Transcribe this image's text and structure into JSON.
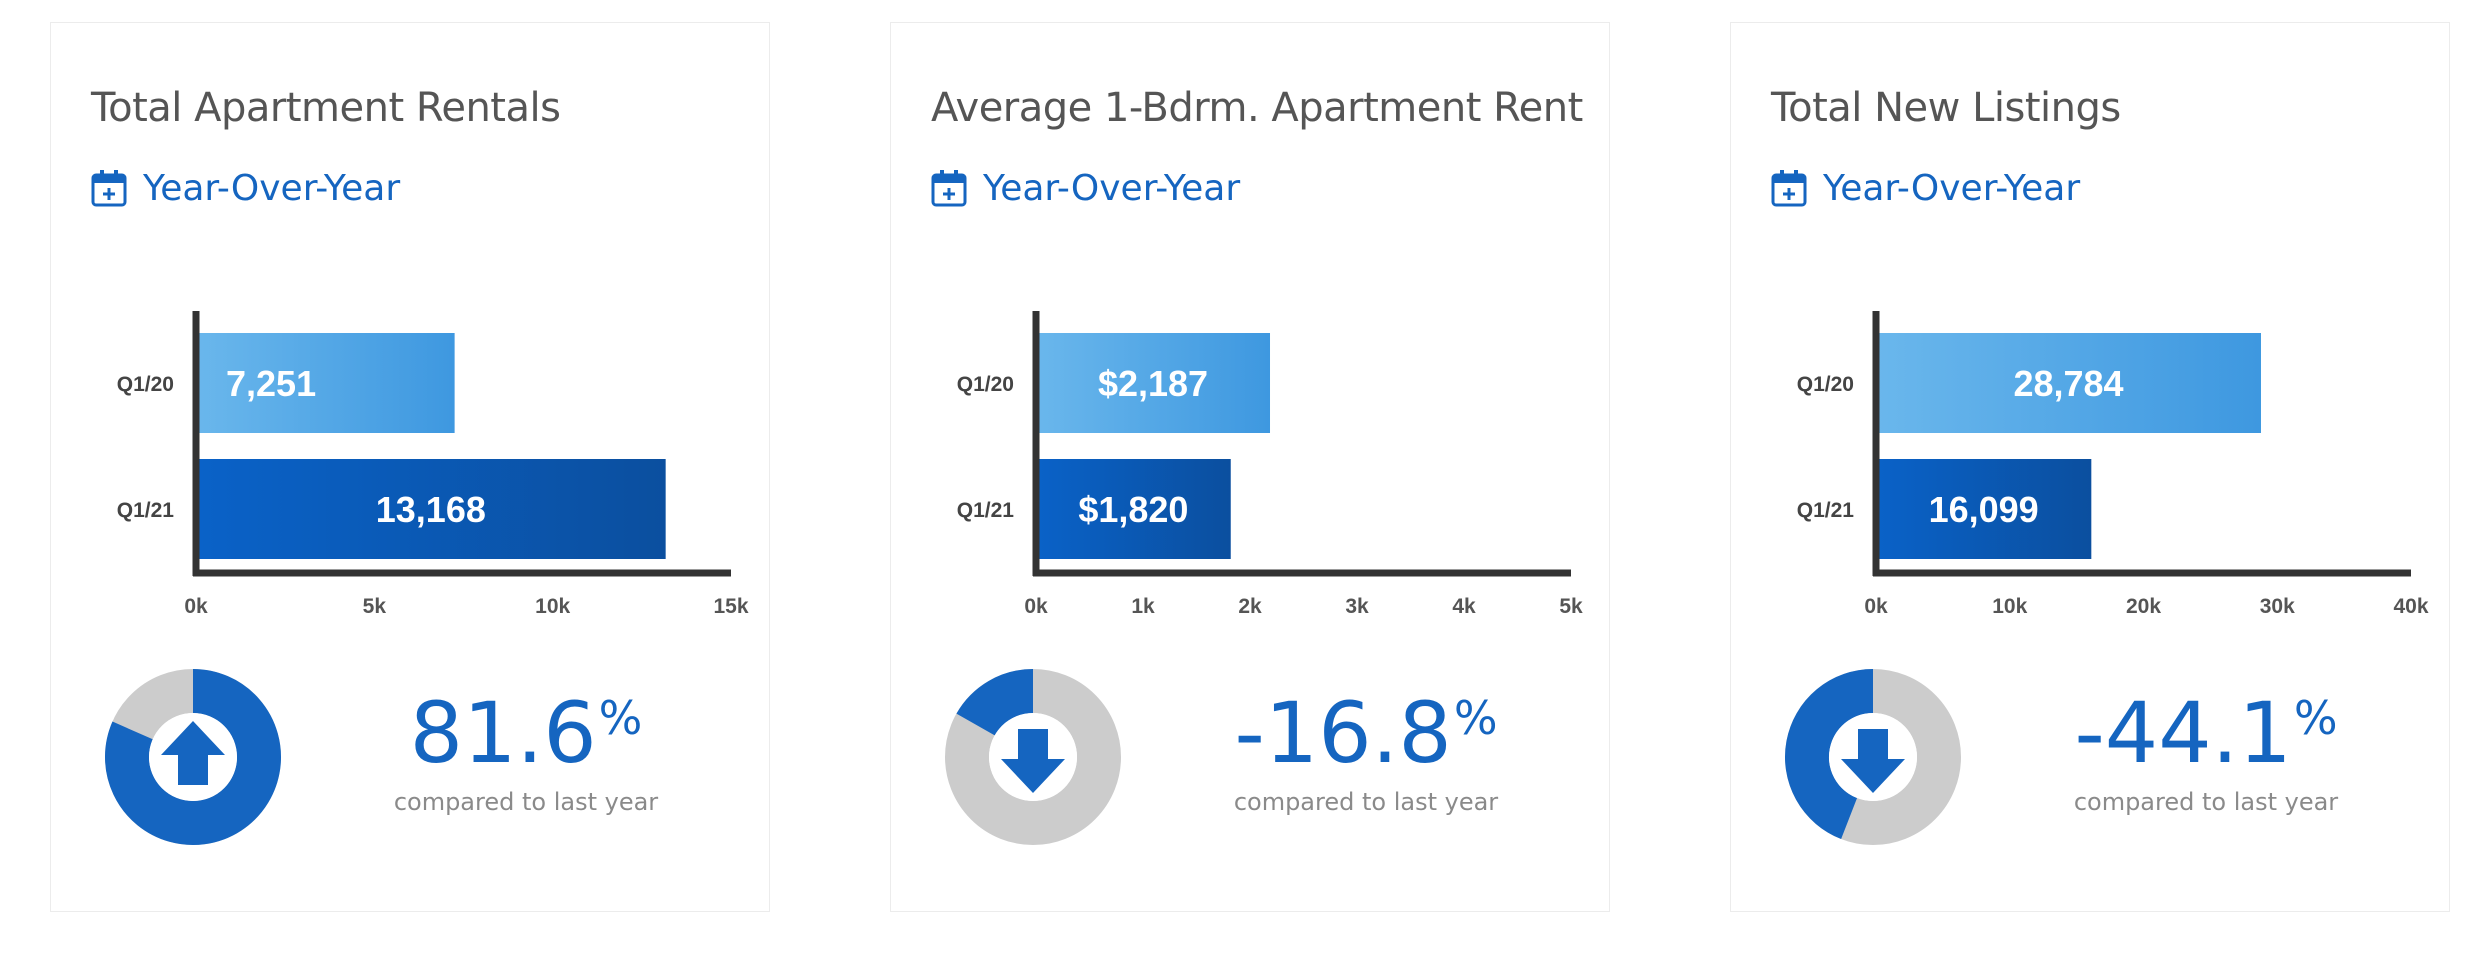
{
  "colors": {
    "accent": "#1565c0",
    "light_bar": "#5aa9e6",
    "dark_bar": "#0d5bb5",
    "donut_gray": "#cccccc",
    "axis": "#333333"
  },
  "period_label": "Year-Over-Year",
  "compare_label": "compared to last year",
  "percent_symbol": "%",
  "cards": [
    {
      "title": "Total Apartment Rentals",
      "change": "81.6",
      "direction": "up",
      "change_fraction": 0.816
    },
    {
      "title": "Average 1-Bdrm. Apartment Rent",
      "change": "-16.8",
      "direction": "down",
      "change_fraction": 0.168
    },
    {
      "title": "Total New Listings",
      "change": "-44.1",
      "direction": "down",
      "change_fraction": 0.441
    }
  ],
  "chart_data": [
    {
      "type": "bar",
      "orientation": "horizontal",
      "categories": [
        "Q1/20",
        "Q1/21"
      ],
      "values": [
        7251,
        13168
      ],
      "data_labels": [
        "7,251",
        "13,168"
      ],
      "xlim": [
        0,
        15000
      ],
      "ticks": [
        0,
        5000,
        10000,
        15000
      ],
      "tick_labels": [
        "0k",
        "5k",
        "10k",
        "15k"
      ],
      "label_align": [
        "left",
        "center"
      ]
    },
    {
      "type": "bar",
      "orientation": "horizontal",
      "categories": [
        "Q1/20",
        "Q1/21"
      ],
      "values": [
        2187,
        1820
      ],
      "data_labels": [
        "$2,187",
        "$1,820"
      ],
      "xlim": [
        0,
        5000
      ],
      "ticks": [
        0,
        1000,
        2000,
        3000,
        4000,
        5000
      ],
      "tick_labels": [
        "0k",
        "1k",
        "2k",
        "3k",
        "4k",
        "5k"
      ],
      "label_align": [
        "center",
        "center"
      ]
    },
    {
      "type": "bar",
      "orientation": "horizontal",
      "categories": [
        "Q1/20",
        "Q1/21"
      ],
      "values": [
        28784,
        16099
      ],
      "data_labels": [
        "28,784",
        "16,099"
      ],
      "xlim": [
        0,
        40000
      ],
      "ticks": [
        0,
        10000,
        20000,
        30000,
        40000
      ],
      "tick_labels": [
        "0k",
        "10k",
        "20k",
        "30k",
        "40k"
      ],
      "label_align": [
        "center",
        "center"
      ]
    }
  ]
}
